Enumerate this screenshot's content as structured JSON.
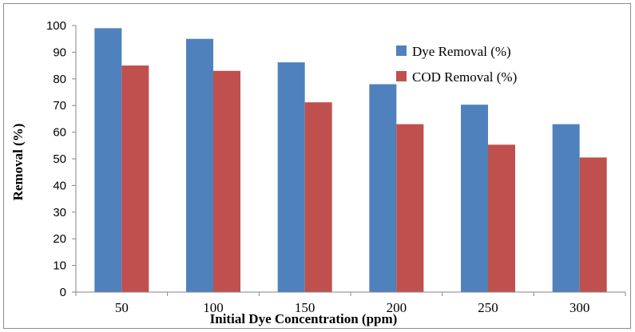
{
  "chart_data": {
    "type": "bar",
    "title": "",
    "xlabel": "Initial Dye Concentration (ppm)",
    "ylabel": "Removal (%)",
    "categories": [
      "50",
      "100",
      "150",
      "200",
      "250",
      "300"
    ],
    "ylim": [
      0,
      100
    ],
    "yticks": [
      "0",
      "10",
      "20",
      "30",
      "40",
      "50",
      "60",
      "70",
      "80",
      "90",
      "100"
    ],
    "grid": false,
    "legend_position": "top-right",
    "series": [
      {
        "name": "Dye Removal (%)",
        "color": "#4F81BD",
        "values": [
          99,
          95,
          86.2,
          78,
          70.3,
          63
        ]
      },
      {
        "name": "COD Removal (%)",
        "color": "#C0504D",
        "values": [
          85,
          83,
          71.2,
          63,
          55.3,
          50.5
        ]
      }
    ]
  }
}
